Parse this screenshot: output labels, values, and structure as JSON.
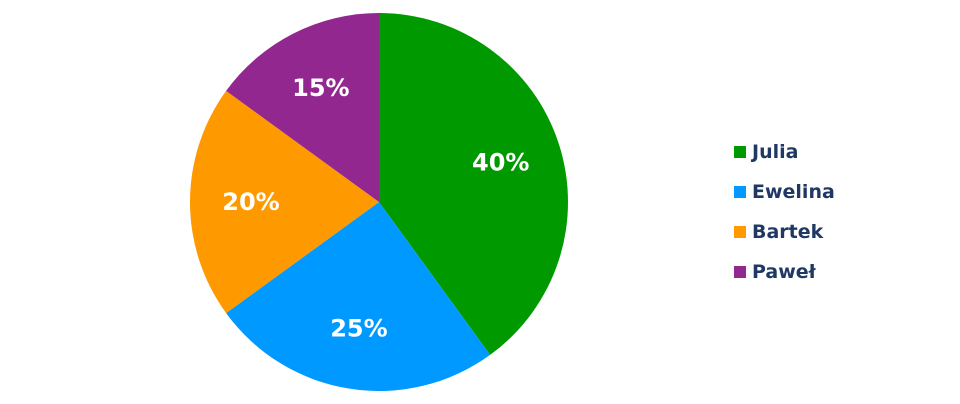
{
  "chart_data": {
    "type": "pie",
    "categories": [
      "Julia",
      "Ewelina",
      "Bartek",
      "Paweł"
    ],
    "values": [
      40,
      25,
      20,
      15
    ],
    "data_labels": [
      "40%",
      "25%",
      "20%",
      "15%"
    ],
    "colors": [
      "#009900",
      "#0099ff",
      "#ff9900",
      "#92278f"
    ],
    "start_angle": "12 o'clock",
    "direction": "clockwise",
    "legend_placement": "right"
  }
}
